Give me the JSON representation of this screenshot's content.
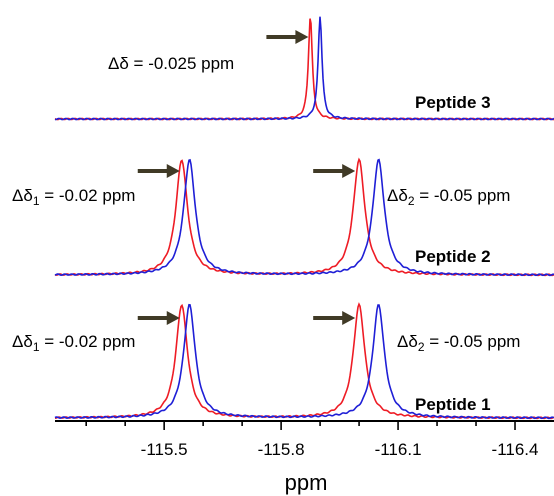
{
  "chart_data": {
    "type": "line",
    "xlabel": "ppm",
    "x_axis": {
      "range": [
        -115.22,
        -116.5
      ],
      "reversed": true,
      "major_ticks": [
        -115.5,
        -115.8,
        -116.1,
        -116.4
      ],
      "tick_labels": [
        "-115.5",
        "-115.8",
        "-116.1",
        "-116.4"
      ],
      "minor_step": 0.1
    },
    "grid": false,
    "colors": {
      "red": "#ee1c25",
      "blue": "#1f1fd6",
      "arrow": "#403a26"
    },
    "panels": [
      {
        "name": "Peptide 3",
        "annotations": [
          {
            "text": "Δδ = -0.025 ppm",
            "arrow_tip_x": -115.87
          }
        ],
        "series": [
          {
            "color": "red",
            "peaks": [
              {
                "x": -115.875,
                "height": 1.0
              }
            ]
          },
          {
            "color": "blue",
            "peaks": [
              {
                "x": -115.9,
                "height": 1.0
              }
            ]
          }
        ]
      },
      {
        "name": "Peptide 2",
        "annotations": [
          {
            "text_main": "Δδ",
            "text_sub": "1",
            "text_rest": " = -0.02 ppm",
            "arrow_tip_x": -115.54
          },
          {
            "text_main": "Δδ",
            "text_sub": "2",
            "text_rest": " = -0.05 ppm",
            "arrow_tip_x": -115.99
          }
        ],
        "series": [
          {
            "color": "red",
            "peaks": [
              {
                "x": -115.545,
                "height": 1.0
              },
              {
                "x": -116.0,
                "height": 1.0
              }
            ]
          },
          {
            "color": "blue",
            "peaks": [
              {
                "x": -115.565,
                "height": 1.0
              },
              {
                "x": -116.05,
                "height": 1.0
              }
            ]
          }
        ]
      },
      {
        "name": "Peptide 1",
        "annotations": [
          {
            "text_main": "Δδ",
            "text_sub": "1",
            "text_rest": " = -0.02 ppm",
            "arrow_tip_x": -115.54
          },
          {
            "text_main": "Δδ",
            "text_sub": "2",
            "text_rest": " = -0.05 ppm",
            "arrow_tip_x": -115.99
          }
        ],
        "series": [
          {
            "color": "red",
            "peaks": [
              {
                "x": -115.545,
                "height": 1.0
              },
              {
                "x": -116.0,
                "height": 1.0
              }
            ]
          },
          {
            "color": "blue",
            "peaks": [
              {
                "x": -115.565,
                "height": 1.0
              },
              {
                "x": -116.05,
                "height": 1.0
              }
            ]
          }
        ]
      }
    ]
  }
}
